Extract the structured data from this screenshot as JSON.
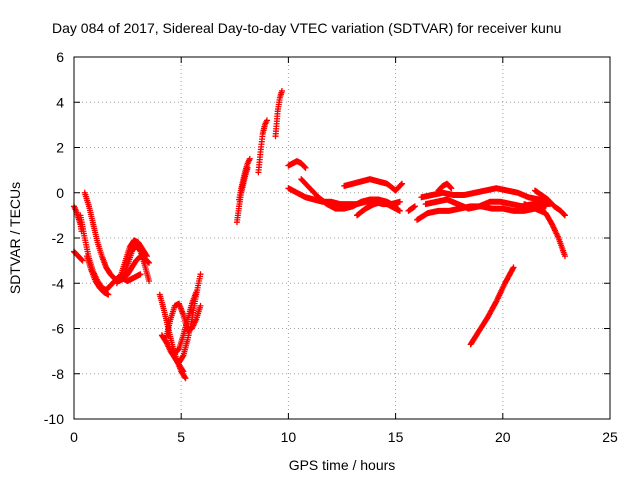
{
  "chart_data": {
    "type": "scatter",
    "title": "Day 084 of 2017, Sidereal Day-to-day VTEC variation (SDTVAR) for receiver kunu",
    "xlabel": "GPS time / hours",
    "ylabel": "SDTVAR / TECUs",
    "xlim": [
      0,
      25
    ],
    "ylim": [
      -10,
      6
    ],
    "xticks": [
      "0",
      "5",
      "10",
      "15",
      "20",
      "25"
    ],
    "yticks": [
      "-10",
      "-8",
      "-6",
      "-4",
      "-2",
      "0",
      "2",
      "4",
      "6"
    ],
    "grid": true,
    "legend": "none",
    "marker": "plus",
    "color": "#ff0000",
    "series": [
      {
        "x": [
          0.0,
          0.1,
          0.2,
          0.3,
          0.4
        ],
        "y": [
          -2.6,
          -2.7,
          -2.8,
          -2.9,
          -3.0
        ]
      },
      {
        "x": [
          0.0,
          0.1,
          0.2,
          0.3,
          0.35
        ],
        "y": [
          -0.6,
          -0.8,
          -1.1,
          -1.4,
          -1.7
        ]
      },
      {
        "x": [
          0.3,
          0.5,
          0.7,
          0.9,
          1.1,
          1.3,
          1.5,
          1.7,
          1.9,
          2.1,
          2.3,
          2.5,
          2.7,
          2.9,
          3.1
        ],
        "y": [
          -1.0,
          -2.0,
          -2.9,
          -3.5,
          -3.9,
          -4.2,
          -4.3,
          -4.1,
          -3.9,
          -3.7,
          -3.8,
          -3.9,
          -3.8,
          -3.7,
          -3.6
        ]
      },
      {
        "x": [
          0.5,
          0.7,
          0.9,
          1.1,
          1.3,
          1.5,
          1.7,
          1.9,
          2.1,
          2.3,
          2.5,
          2.7,
          2.9,
          3.1,
          3.3,
          3.5
        ],
        "y": [
          0.0,
          -0.6,
          -1.4,
          -2.2,
          -2.8,
          -3.3,
          -3.6,
          -3.8,
          -3.9,
          -3.8,
          -3.6,
          -3.3,
          -3.0,
          -2.8,
          -2.9,
          -3.1
        ]
      },
      {
        "x": [
          0.6,
          0.8,
          1.0,
          1.2,
          1.4,
          1.6
        ],
        "y": [
          -2.8,
          -3.4,
          -3.9,
          -4.2,
          -4.4,
          -4.5
        ]
      },
      {
        "x": [
          2.0,
          2.2,
          2.4,
          2.6,
          2.8,
          3.0,
          3.2,
          3.4
        ],
        "y": [
          -4.0,
          -3.6,
          -3.0,
          -2.4,
          -2.1,
          -2.2,
          -2.5,
          -2.8
        ]
      },
      {
        "x": [
          2.3,
          2.5,
          2.7,
          2.9,
          3.1,
          3.3,
          3.5
        ],
        "y": [
          -3.8,
          -3.2,
          -2.6,
          -2.3,
          -2.6,
          -3.2,
          -3.9
        ]
      },
      {
        "x": [
          4.0,
          4.2,
          4.4,
          4.6,
          4.8,
          5.0,
          5.2
        ],
        "y": [
          -4.5,
          -5.2,
          -6.0,
          -6.8,
          -7.4,
          -7.9,
          -8.2
        ]
      },
      {
        "x": [
          4.1,
          4.3,
          4.5,
          4.7,
          4.9,
          5.1
        ],
        "y": [
          -6.3,
          -6.6,
          -7.0,
          -7.3,
          -7.6,
          -7.9
        ]
      },
      {
        "x": [
          4.3,
          4.5,
          4.7,
          4.9,
          5.1,
          5.3,
          5.5,
          5.7,
          5.9
        ],
        "y": [
          -6.4,
          -5.6,
          -5.0,
          -4.9,
          -5.4,
          -6.1,
          -6.0,
          -5.6,
          -5.0
        ]
      },
      {
        "x": [
          4.7,
          4.9,
          5.1,
          5.3,
          5.5,
          5.7
        ],
        "y": [
          -7.1,
          -6.9,
          -6.3,
          -5.6,
          -4.9,
          -4.4
        ]
      },
      {
        "x": [
          4.9,
          5.1,
          5.3,
          5.5,
          5.7,
          5.9
        ],
        "y": [
          -7.5,
          -7.2,
          -6.5,
          -5.6,
          -4.5,
          -3.6
        ]
      },
      {
        "x": [
          7.6,
          7.7,
          7.8,
          7.9,
          8.0,
          8.1
        ],
        "y": [
          -1.3,
          -0.6,
          0.0,
          0.4,
          0.8,
          1.1
        ]
      },
      {
        "x": [
          7.7,
          7.8,
          7.9,
          8.0,
          8.1,
          8.2
        ],
        "y": [
          -0.3,
          0.2,
          0.6,
          1.0,
          1.3,
          1.5
        ]
      },
      {
        "x": [
          8.6,
          8.7,
          8.8,
          8.9,
          9.0
        ],
        "y": [
          0.9,
          1.8,
          2.6,
          3.0,
          3.2
        ]
      },
      {
        "x": [
          9.4,
          9.5,
          9.6,
          9.7
        ],
        "y": [
          2.5,
          3.6,
          4.2,
          4.5
        ]
      },
      {
        "x": [
          10.0,
          10.2,
          10.4,
          10.6,
          10.8
        ],
        "y": [
          1.2,
          1.3,
          1.4,
          1.3,
          1.1
        ]
      },
      {
        "x": [
          10.0,
          10.4,
          10.8,
          11.2,
          11.6,
          12.0,
          12.4,
          12.8,
          13.2,
          13.6,
          14.0,
          14.4,
          14.8,
          15.2
        ],
        "y": [
          0.2,
          0.0,
          -0.2,
          -0.3,
          -0.4,
          -0.4,
          -0.5,
          -0.5,
          -0.5,
          -0.4,
          -0.4,
          -0.5,
          -0.5,
          -0.4
        ]
      },
      {
        "x": [
          10.6,
          11.0,
          11.4,
          11.8,
          12.2,
          12.6,
          13.0,
          13.4,
          13.8,
          14.2,
          14.6,
          15.0
        ],
        "y": [
          0.6,
          0.2,
          -0.2,
          -0.5,
          -0.7,
          -0.7,
          -0.6,
          -0.4,
          -0.3,
          -0.3,
          -0.4,
          -0.6
        ]
      },
      {
        "x": [
          12.6,
          13.0,
          13.4,
          13.8,
          14.2,
          14.6,
          15.0,
          15.3
        ],
        "y": [
          0.3,
          0.4,
          0.5,
          0.6,
          0.5,
          0.4,
          0.1,
          0.4
        ]
      },
      {
        "x": [
          13.2,
          13.6,
          14.0,
          14.4,
          14.8,
          15.2
        ],
        "y": [
          -1.0,
          -0.7,
          -0.5,
          -0.4,
          -0.6,
          -0.8
        ]
      },
      {
        "x": [
          15.6,
          15.9
        ],
        "y": [
          -0.8,
          -0.6
        ]
      },
      {
        "x": [
          16.0,
          16.5,
          17.0,
          17.5,
          18.0,
          18.5,
          19.0,
          19.5,
          20.0,
          20.5,
          21.0,
          21.5,
          22.0
        ],
        "y": [
          -1.2,
          -0.9,
          -0.8,
          -0.8,
          -0.7,
          -0.6,
          -0.6,
          -0.7,
          -0.7,
          -0.8,
          -0.8,
          -0.7,
          -0.6
        ]
      },
      {
        "x": [
          16.2,
          16.7,
          17.2,
          17.7,
          18.2,
          18.7,
          19.2,
          19.7,
          20.2,
          20.7,
          21.2,
          21.7,
          22.2
        ],
        "y": [
          -0.2,
          -0.1,
          0.0,
          -0.1,
          -0.1,
          0.0,
          0.1,
          0.2,
          0.1,
          0.0,
          -0.2,
          -0.3,
          -0.5
        ]
      },
      {
        "x": [
          16.4,
          16.9,
          17.4,
          17.9,
          18.4,
          18.9,
          19.4,
          19.9,
          20.4,
          20.9,
          21.4,
          21.9
        ],
        "y": [
          -0.5,
          -0.4,
          -0.3,
          -0.5,
          -0.7,
          -0.6,
          -0.4,
          -0.4,
          -0.5,
          -0.6,
          -0.5,
          -0.4
        ]
      },
      {
        "x": [
          17.0,
          17.2,
          17.4,
          17.6
        ],
        "y": [
          0.1,
          0.3,
          0.4,
          0.2
        ]
      },
      {
        "x": [
          21.0,
          21.5,
          22.0,
          22.3,
          22.6,
          22.9
        ],
        "y": [
          -0.5,
          -0.7,
          -0.9,
          -1.4,
          -2.0,
          -2.8
        ]
      },
      {
        "x": [
          21.5,
          21.8,
          22.1,
          22.4,
          22.7,
          22.9
        ],
        "y": [
          0.1,
          -0.1,
          -0.3,
          -0.6,
          -0.8,
          -1.0
        ]
      },
      {
        "x": [
          18.5,
          18.9,
          19.3,
          19.7,
          20.1,
          20.5
        ],
        "y": [
          -6.7,
          -6.1,
          -5.5,
          -4.8,
          -4.0,
          -3.3
        ]
      }
    ]
  }
}
